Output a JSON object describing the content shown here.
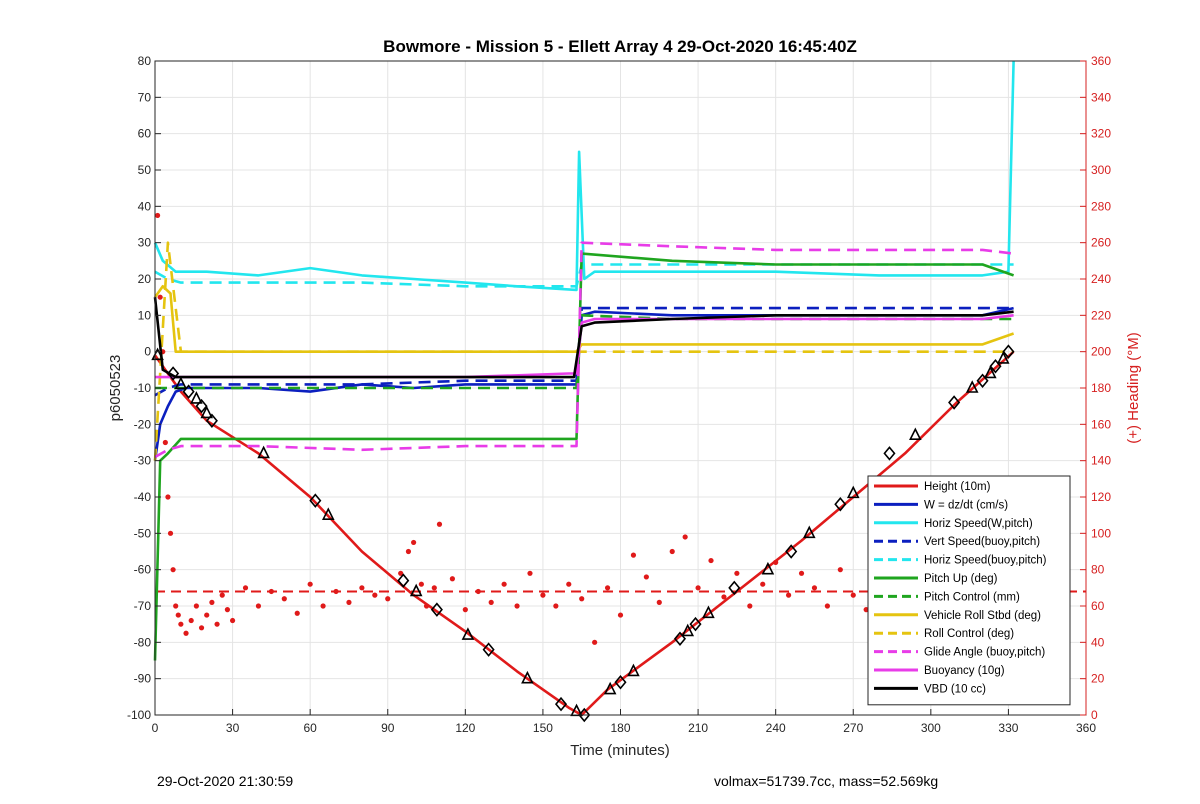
{
  "chart_data": {
    "type": "line",
    "title": "Bowmore - Mission 5 - Ellett Array 4 29-Oct-2020 16:45:40Z",
    "xlabel": "Time (minutes)",
    "ylabel": "p6050523",
    "ylabel_right": "(+) Heading (°M)",
    "xlim": [
      0,
      360
    ],
    "ylim": [
      -100,
      80
    ],
    "ylim_right": [
      0,
      360
    ],
    "xticks": [
      0,
      30,
      60,
      90,
      120,
      150,
      180,
      210,
      240,
      270,
      300,
      330,
      360
    ],
    "yticks": [
      -100,
      -90,
      -80,
      -70,
      -60,
      -50,
      -40,
      -30,
      -20,
      -10,
      0,
      10,
      20,
      30,
      40,
      50,
      60,
      70,
      80
    ],
    "yticks_right": [
      0,
      20,
      40,
      60,
      80,
      100,
      120,
      140,
      160,
      180,
      200,
      220,
      240,
      260,
      280,
      300,
      320,
      340,
      360
    ],
    "grid": true,
    "legend_position": "bottom-right",
    "colors": {
      "red": "#e01a1a",
      "blue": "#0b1fbf",
      "cyan": "#22e6ee",
      "green": "#1fa51f",
      "yellow": "#e5c410",
      "magenta": "#e83ce8",
      "black": "#000000",
      "axis_right": "#d62020"
    },
    "series": [
      {
        "name": "Height (10m)",
        "style": "solid",
        "color": "red",
        "x": [
          0,
          5,
          10,
          20,
          40,
          60,
          80,
          100,
          120,
          140,
          160,
          165,
          175,
          200,
          225,
          250,
          270,
          290,
          310,
          332
        ],
        "y": [
          -1,
          -6,
          -11,
          -19,
          -28,
          -40,
          -55,
          -67,
          -77,
          -88,
          -98,
          -100,
          -93,
          -80,
          -66,
          -52,
          -40,
          -28,
          -14,
          0
        ]
      },
      {
        "name": "W = dz/dt (cm/s)",
        "style": "solid",
        "color": "blue",
        "x": [
          0,
          2,
          5,
          8,
          12,
          20,
          40,
          60,
          80,
          100,
          120,
          140,
          163,
          165,
          170,
          200,
          240,
          280,
          320,
          332
        ],
        "y": [
          -30,
          -20,
          -15,
          -11,
          -10,
          -10,
          -10,
          -11,
          -9,
          -10,
          -9,
          -9,
          -9,
          10,
          11,
          10,
          10,
          10,
          10,
          12
        ]
      },
      {
        "name": "Horiz Speed(W,pitch)",
        "style": "solid",
        "color": "cyan",
        "x": [
          0,
          3,
          8,
          20,
          40,
          60,
          80,
          100,
          120,
          140,
          163,
          164,
          166,
          170,
          200,
          240,
          280,
          320,
          330,
          332
        ],
        "y": [
          30,
          25,
          22,
          22,
          21,
          23,
          21,
          20,
          19,
          18,
          17,
          55,
          20,
          22,
          22,
          22,
          21,
          21,
          22,
          80
        ]
      },
      {
        "name": "Vert Speed(buoy,pitch)",
        "style": "dashed",
        "color": "blue",
        "x": [
          0,
          5,
          10,
          40,
          80,
          120,
          163,
          165,
          200,
          240,
          280,
          320,
          332
        ],
        "y": [
          -12,
          -10,
          -9,
          -9,
          -9,
          -8,
          -8,
          12,
          12,
          12,
          12,
          12,
          12
        ]
      },
      {
        "name": "Horiz Speed(buoy,pitch)",
        "style": "dashed",
        "color": "cyan",
        "x": [
          0,
          5,
          10,
          40,
          80,
          120,
          163,
          165,
          200,
          240,
          280,
          320,
          332
        ],
        "y": [
          22,
          20,
          19,
          19,
          19,
          18,
          18,
          24,
          24,
          24,
          24,
          24,
          24
        ]
      },
      {
        "name": "Pitch Up (deg)",
        "style": "solid",
        "color": "green",
        "x": [
          0,
          2,
          5,
          10,
          40,
          80,
          120,
          163,
          165,
          200,
          240,
          280,
          320,
          332
        ],
        "y": [
          -85,
          -30,
          -28,
          -24,
          -24,
          -24,
          -24,
          -24,
          27,
          25,
          24,
          24,
          24,
          21
        ]
      },
      {
        "name": "Pitch Control (mm)",
        "style": "dashed",
        "color": "green",
        "x": [
          0,
          5,
          10,
          40,
          80,
          120,
          163,
          165,
          200,
          240,
          280,
          320,
          332
        ],
        "y": [
          -10,
          -10,
          -10,
          -10,
          -10,
          -10,
          -10,
          10,
          9,
          9,
          9,
          9,
          9
        ]
      },
      {
        "name": "Vehicle Roll Stbd (deg)",
        "style": "solid",
        "color": "yellow",
        "x": [
          0,
          3,
          6,
          8,
          10,
          30,
          60,
          90,
          120,
          150,
          163,
          165,
          200,
          240,
          280,
          320,
          332
        ],
        "y": [
          15,
          18,
          16,
          0,
          0,
          0,
          0,
          0,
          0,
          0,
          0,
          2,
          2,
          2,
          2,
          2,
          5
        ]
      },
      {
        "name": "Roll Control (deg)",
        "style": "dashed",
        "color": "yellow",
        "x": [
          0,
          5,
          10,
          40,
          80,
          120,
          163,
          165,
          200,
          240,
          280,
          320,
          332
        ],
        "y": [
          -30,
          30,
          0,
          0,
          0,
          0,
          0,
          0,
          0,
          0,
          0,
          0,
          0
        ]
      },
      {
        "name": "Glide Angle (buoy,pitch)",
        "style": "dashed",
        "color": "magenta",
        "x": [
          0,
          5,
          10,
          40,
          80,
          120,
          163,
          165,
          200,
          240,
          280,
          320,
          332
        ],
        "y": [
          -29,
          -27,
          -26,
          -26,
          -27,
          -26,
          -26,
          30,
          29,
          28,
          28,
          28,
          27
        ]
      },
      {
        "name": "Buoyancy (10g)",
        "style": "solid",
        "color": "magenta",
        "x": [
          0,
          10,
          40,
          80,
          120,
          160,
          163,
          165,
          170,
          200,
          240,
          280,
          320,
          332
        ],
        "y": [
          -7,
          -7,
          -7,
          -7,
          -7,
          -6,
          -6,
          8,
          9,
          9,
          9,
          9,
          9,
          10
        ]
      },
      {
        "name": "VBD (10 cc)",
        "style": "solid",
        "color": "black",
        "x": [
          0,
          3,
          8,
          40,
          80,
          120,
          162,
          165,
          170,
          200,
          240,
          280,
          320,
          332
        ],
        "y": [
          15,
          -5,
          -7,
          -7,
          -7,
          -7,
          -7,
          7,
          8,
          9,
          10,
          10,
          10,
          11
        ]
      }
    ],
    "heading_points": {
      "axis": "right",
      "color": "red",
      "reference_line": 68,
      "x": [
        1,
        2,
        3,
        4,
        5,
        6,
        7,
        8,
        9,
        10,
        12,
        14,
        16,
        18,
        20,
        22,
        24,
        26,
        28,
        30,
        35,
        40,
        45,
        50,
        55,
        60,
        65,
        70,
        75,
        80,
        85,
        90,
        95,
        98,
        100,
        103,
        105,
        108,
        110,
        115,
        120,
        125,
        130,
        135,
        140,
        145,
        150,
        155,
        160,
        165,
        170,
        175,
        180,
        185,
        190,
        195,
        200,
        205,
        210,
        215,
        220,
        225,
        230,
        235,
        240,
        245,
        250,
        255,
        260,
        265,
        270,
        275,
        280,
        285,
        290,
        295,
        300,
        305,
        310,
        315,
        320,
        325,
        330
      ],
      "y": [
        275,
        230,
        200,
        150,
        120,
        100,
        80,
        60,
        55,
        50,
        45,
        52,
        60,
        48,
        55,
        62,
        50,
        66,
        58,
        52,
        70,
        60,
        68,
        64,
        56,
        72,
        60,
        68,
        62,
        70,
        66,
        64,
        78,
        90,
        95,
        72,
        60,
        70,
        105,
        75,
        58,
        68,
        62,
        72,
        60,
        78,
        66,
        60,
        72,
        64,
        40,
        70,
        55,
        88,
        76,
        62,
        90,
        98,
        70,
        85,
        65,
        78,
        60,
        72,
        84,
        66,
        78,
        70,
        60,
        80,
        66,
        58,
        72,
        64,
        80,
        70,
        58,
        62,
        70,
        50,
        40,
        45,
        50
      ]
    },
    "markers": {
      "shape": "triangle-and-diamond",
      "color": "black",
      "x": [
        1,
        7,
        10,
        13,
        16,
        18,
        20,
        22,
        42,
        62,
        67,
        96,
        101,
        109,
        121,
        129,
        144,
        157,
        163,
        166,
        176,
        180,
        185,
        203,
        206,
        209,
        214,
        224,
        237,
        246,
        253,
        265,
        270,
        284,
        294,
        309,
        316,
        320,
        323,
        325,
        328,
        330
      ],
      "y": [
        -1,
        -6,
        -9,
        -11,
        -13,
        -15,
        -17,
        -19,
        -28,
        -41,
        -45,
        -63,
        -66,
        -71,
        -78,
        -82,
        -90,
        -97,
        -99,
        -100,
        -93,
        -91,
        -88,
        -79,
        -77,
        -75,
        -72,
        -65,
        -60,
        -55,
        -50,
        -42,
        -39,
        -28,
        -23,
        -14,
        -10,
        -8,
        -6,
        -4,
        -2,
        0
      ]
    }
  },
  "footer": {
    "left": "29-Oct-2020 21:30:59",
    "right": "volmax=51739.7cc, mass=52.569kg"
  }
}
